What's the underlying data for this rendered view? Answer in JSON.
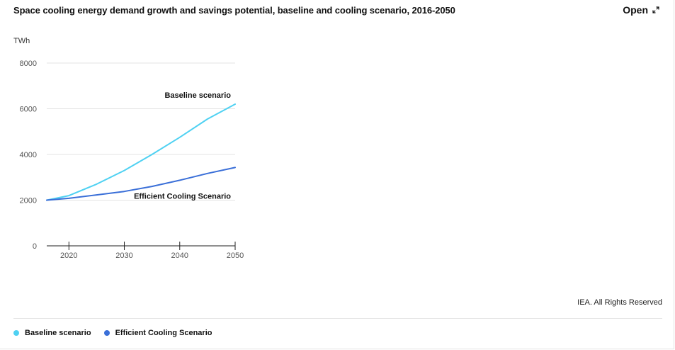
{
  "header": {
    "title": "Space cooling energy demand growth and savings potential, baseline and cooling scenario, 2016-2050",
    "open_label": "Open",
    "open_icon": "expand-icon"
  },
  "footer": {
    "copyright": "IEA. All Rights Reserved"
  },
  "legend": [
    {
      "label": "Baseline scenario",
      "color": "#4fd1f2"
    },
    {
      "label": "Efficient Cooling Scenario",
      "color": "#3a6fd8"
    }
  ],
  "chart_data": {
    "type": "line",
    "unit": "TWh",
    "ylim": [
      0,
      8000
    ],
    "yticks": [
      0,
      2000,
      4000,
      6000,
      8000
    ],
    "xlim": [
      2016,
      2050
    ],
    "xticks": [
      2020,
      2030,
      2040,
      2050
    ],
    "grid": "horizontal",
    "series": [
      {
        "name": "Baseline scenario",
        "color": "#4fd1f2",
        "label_position": "above-end",
        "x": [
          2016,
          2020,
          2025,
          2030,
          2035,
          2040,
          2045,
          2050
        ],
        "values": [
          2000,
          2200,
          2700,
          3300,
          4000,
          4750,
          5550,
          6200
        ]
      },
      {
        "name": "Efficient Cooling Scenario",
        "color": "#3a6fd8",
        "label_position": "below-end",
        "x": [
          2016,
          2020,
          2025,
          2030,
          2035,
          2040,
          2045,
          2050
        ],
        "values": [
          2000,
          2080,
          2230,
          2380,
          2600,
          2870,
          3170,
          3430
        ]
      }
    ]
  }
}
